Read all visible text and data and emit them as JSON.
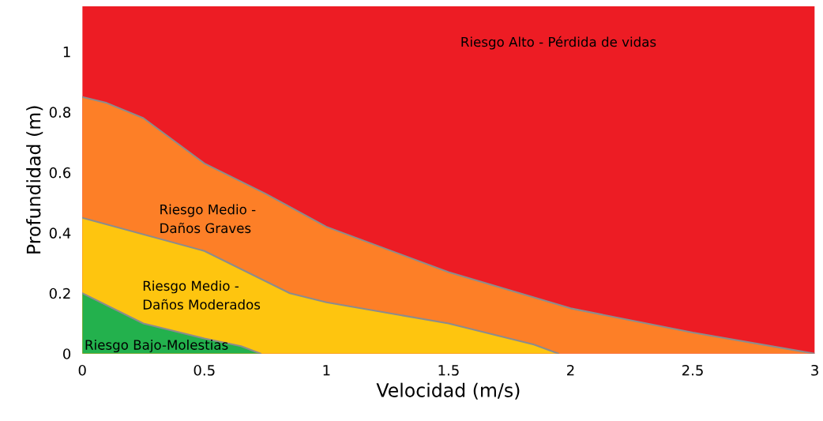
{
  "chart_data": {
    "type": "area",
    "xlabel": "Velocidad (m/s)",
    "ylabel": "Profundidad (m)",
    "xlim": [
      0,
      3
    ],
    "ylim": [
      0,
      1.15
    ],
    "xticks": [
      0,
      0.5,
      1,
      1.5,
      2,
      2.5,
      3
    ],
    "yticks": [
      0,
      0.2,
      0.4,
      0.6,
      0.8,
      1
    ],
    "grid": false,
    "legend": false,
    "bands": [
      {
        "axis": "y",
        "from": 0,
        "to": 1.15,
        "color": "#ed1c24"
      }
    ],
    "series": [
      {
        "color": "#fd7f27",
        "x": [
          0,
          0.1,
          0.25,
          0.5,
          0.75,
          1.0,
          1.5,
          2.0,
          2.5,
          3.0
        ],
        "values": [
          0.85,
          0.83,
          0.78,
          0.63,
          0.53,
          0.42,
          0.27,
          0.15,
          0.07,
          0
        ]
      },
      {
        "color": "#fec50f",
        "x": [
          0,
          0.5,
          0.85,
          1.0,
          1.5,
          1.85,
          1.95
        ],
        "values": [
          0.45,
          0.34,
          0.2,
          0.17,
          0.1,
          0.03,
          0
        ]
      },
      {
        "color": "#23b14d",
        "x": [
          0,
          0.25,
          0.5,
          0.65,
          0.73
        ],
        "values": [
          0.2,
          0.1,
          0.05,
          0.025,
          0
        ]
      }
    ],
    "annotations": [
      "Riesgo Alto - Pérdida de vidas",
      "Riesgo Medio -\nDaños Graves",
      "Riesgo Medio -\nDaños Moderados",
      "Riesgo Bajo-Molestias"
    ]
  }
}
